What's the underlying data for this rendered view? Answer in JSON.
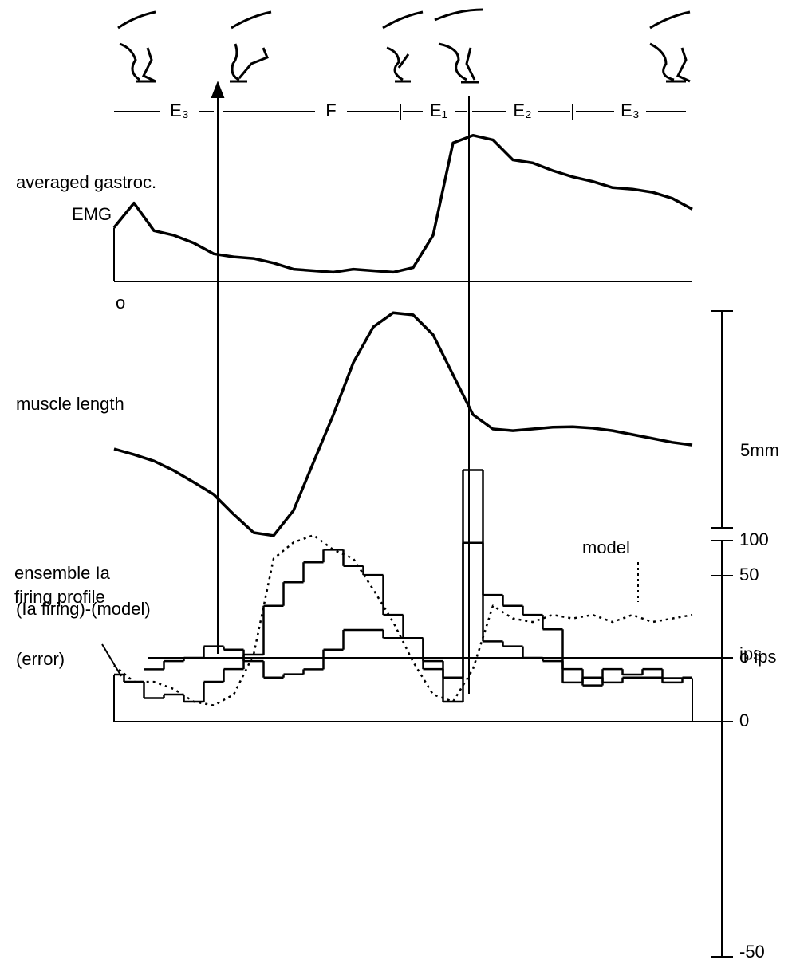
{
  "phases": [
    "E₃",
    "F",
    "E₁",
    "E₂",
    "E₃"
  ],
  "chart_data": [
    {
      "type": "line",
      "label": [
        "averaged gastroc.",
        "EMG"
      ],
      "ylim": [
        0,
        100
      ],
      "yticks": [
        {
          "value": 0,
          "label": "o"
        }
      ],
      "values": [
        35,
        51,
        33,
        30,
        25,
        18,
        16,
        15,
        12,
        8,
        7,
        6,
        8,
        7,
        6,
        9,
        30,
        90,
        95,
        92,
        79,
        77,
        72,
        68,
        65,
        61,
        60,
        58,
        54,
        47
      ]
    },
    {
      "type": "line",
      "label": [
        "muscle length"
      ],
      "ylim": [
        0,
        5
      ],
      "scale_label": "5mm",
      "values": [
        1.82,
        1.69,
        1.54,
        1.32,
        1.05,
        0.77,
        0.31,
        -0.11,
        -0.18,
        0.4,
        1.51,
        2.61,
        3.81,
        4.63,
        4.96,
        4.91,
        4.45,
        3.53,
        2.61,
        2.28,
        2.24,
        2.28,
        2.32,
        2.33,
        2.3,
        2.24,
        2.15,
        2.06,
        1.97,
        1.91
      ]
    },
    {
      "type": "step",
      "label": [
        "ensemble Ia",
        "firing profile"
      ],
      "ylim": [
        0,
        100
      ],
      "yticks": [
        0,
        100
      ],
      "unit": "ips",
      "series": [
        {
          "color": "#000000",
          "values": [
            26,
            22,
            13,
            15,
            11,
            22,
            29,
            37,
            64,
            77,
            88,
            95,
            86,
            81,
            59,
            46,
            29,
            11,
            139,
            70,
            64,
            59,
            51,
            29,
            20,
            29,
            26,
            29,
            24,
            24
          ]
        },
        {
          "name": "model",
          "color": "#000000",
          "dashed": true,
          "values": [
            31,
            22,
            22,
            18,
            11,
            9,
            15,
            37,
            90,
            99,
            103,
            95,
            90,
            73,
            55,
            33,
            15,
            11,
            29,
            64,
            57,
            55,
            59,
            57,
            59,
            55,
            59,
            55,
            57,
            59
          ]
        }
      ]
    },
    {
      "type": "step",
      "label": [
        "(Ia firing)-(model)",
        "(error)"
      ],
      "ylim": [
        -50,
        50
      ],
      "yticks": [
        50,
        {
          "value": 0,
          "label": "o ips"
        },
        -50
      ],
      "values": [
        null,
        null,
        -7,
        -2,
        0,
        7,
        5,
        -2,
        -12,
        -10,
        -7,
        5,
        17,
        17,
        12,
        12,
        -2,
        -12,
        70,
        10,
        7,
        0,
        -2,
        -15,
        -12,
        -15,
        -12,
        -12,
        -15,
        -12
      ]
    }
  ]
}
